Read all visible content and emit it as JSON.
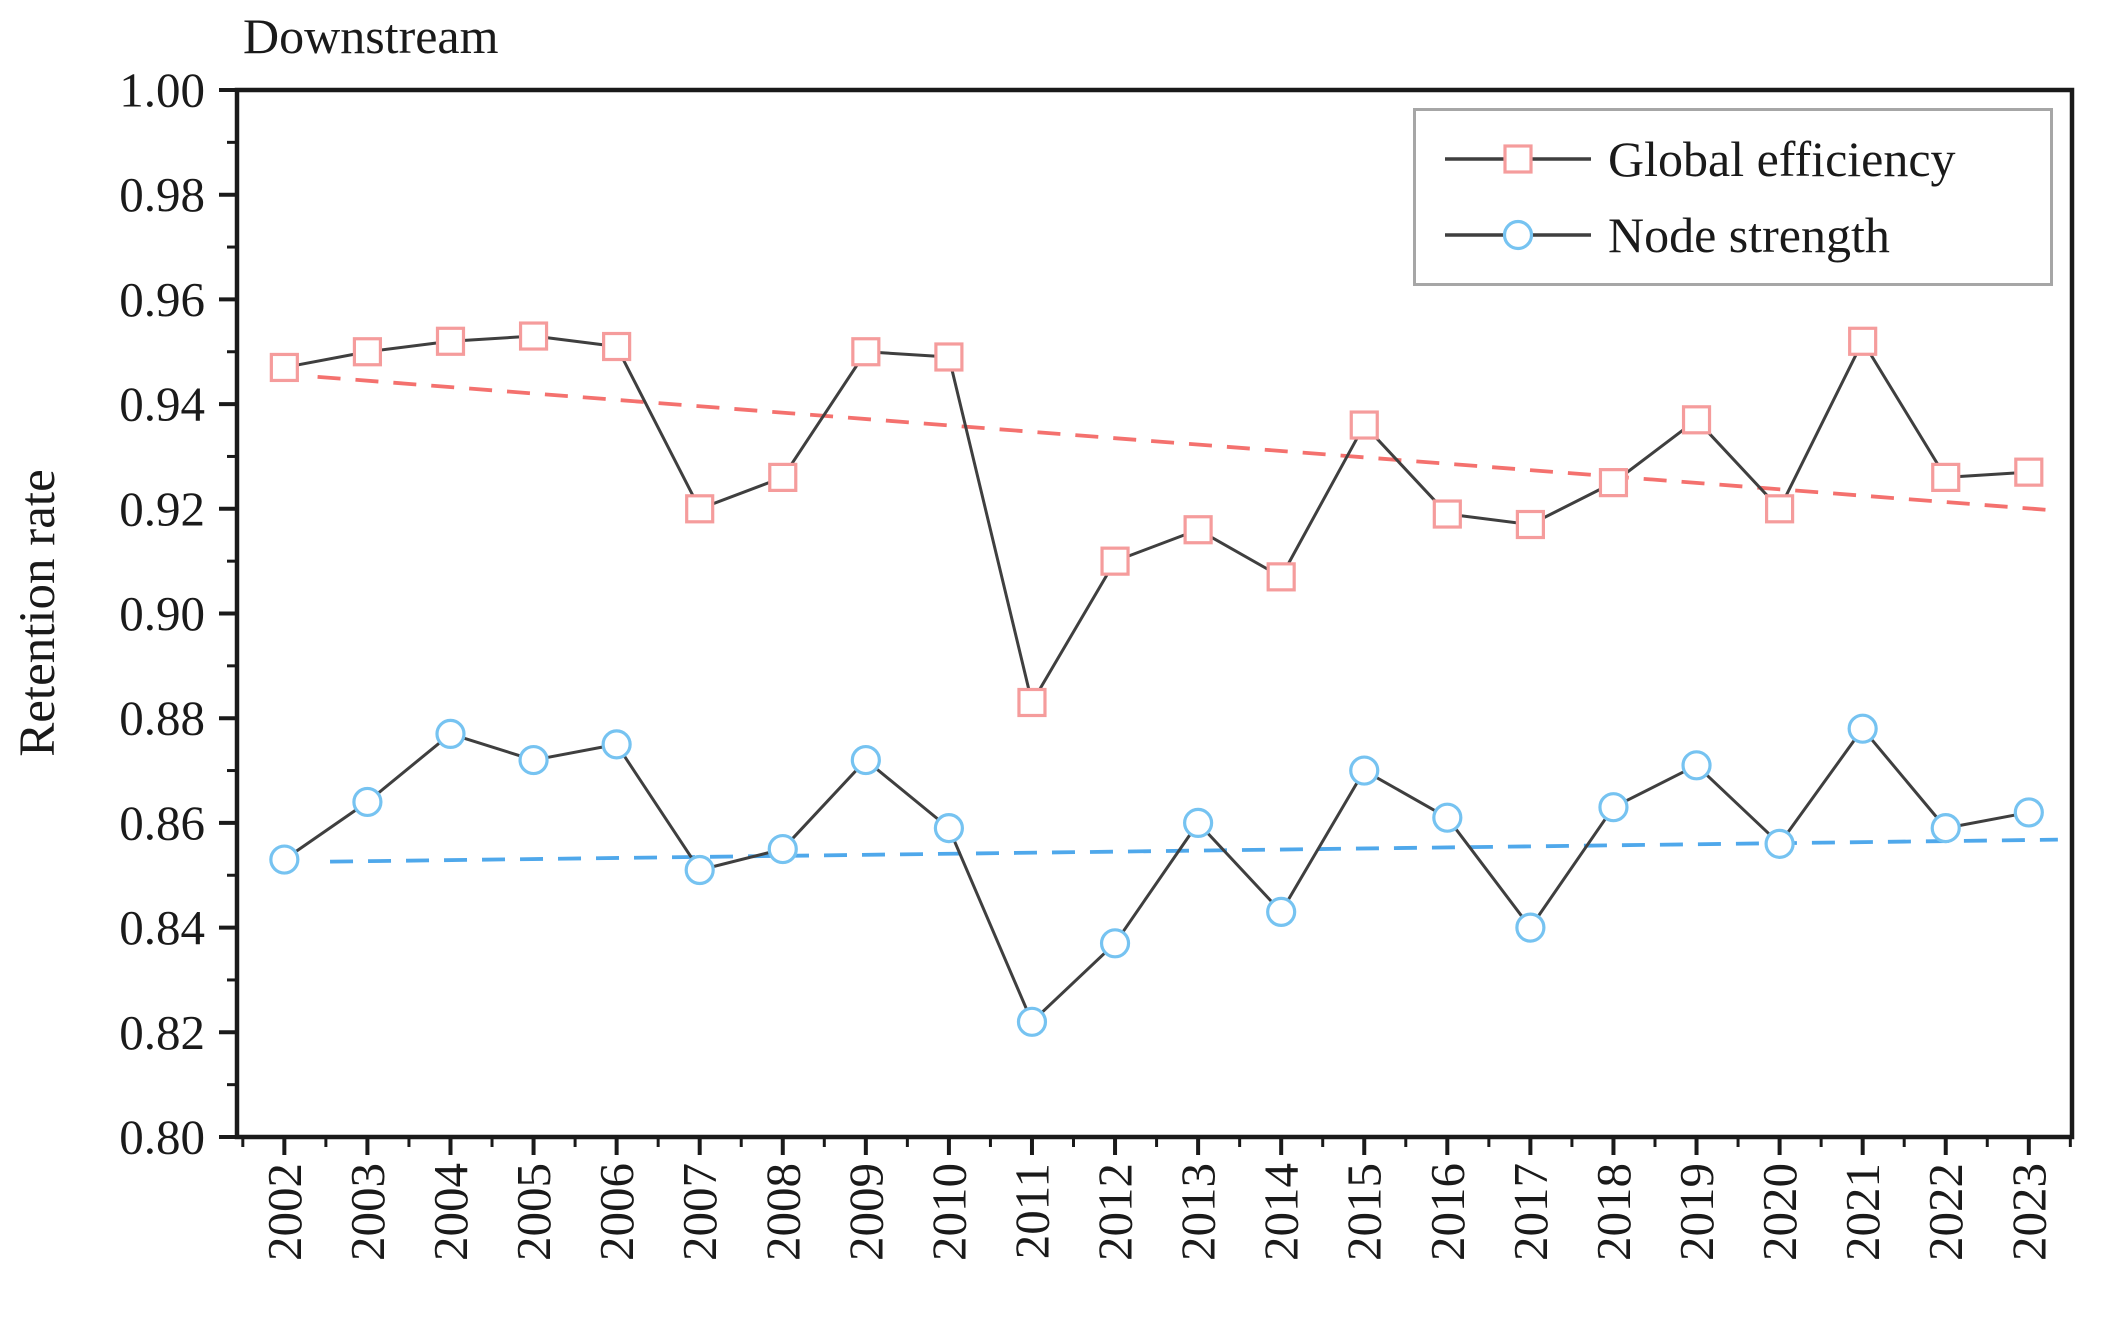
{
  "chart_data": {
    "type": "line",
    "title": "Downstream",
    "xlabel": "",
    "ylabel": "Retention rate",
    "x": [
      2002,
      2003,
      2004,
      2005,
      2006,
      2007,
      2008,
      2009,
      2010,
      2011,
      2012,
      2013,
      2014,
      2015,
      2016,
      2017,
      2018,
      2019,
      2020,
      2021,
      2022,
      2023
    ],
    "series": [
      {
        "name": "Global efficiency",
        "marker": "square",
        "color": "#f59c9c",
        "line_color": "#3f3f3f",
        "values": [
          0.947,
          0.95,
          0.952,
          0.953,
          0.951,
          0.92,
          0.926,
          0.95,
          0.949,
          0.883,
          0.91,
          0.916,
          0.907,
          0.936,
          0.919,
          0.917,
          0.925,
          0.937,
          0.92,
          0.952,
          0.926,
          0.927
        ],
        "trend": {
          "color": "#f4716e",
          "x1": 2002.4,
          "y1": 0.9452,
          "x2": 2023.3,
          "y2": 0.9197
        }
      },
      {
        "name": "Node strength",
        "marker": "circle",
        "color": "#76c3f1",
        "line_color": "#3f3f3f",
        "values": [
          0.853,
          0.864,
          0.877,
          0.872,
          0.875,
          0.851,
          0.855,
          0.872,
          0.859,
          0.822,
          0.837,
          0.86,
          0.843,
          0.87,
          0.861,
          0.84,
          0.863,
          0.871,
          0.856,
          0.878,
          0.859,
          0.862
        ],
        "trend": {
          "color": "#4fa8eb",
          "x1": 2002.55,
          "y1": 0.8526,
          "x2": 2023.35,
          "y2": 0.8568
        }
      }
    ],
    "x_range": [
      2001.43,
      2023.52
    ],
    "ylim": [
      0.8,
      1.0
    ],
    "y_tick_labels": [
      "0.80",
      "0.82",
      "0.84",
      "0.86",
      "0.88",
      "0.90",
      "0.92",
      "0.94",
      "0.96",
      "0.98",
      "1.00"
    ],
    "y_minor_step": 0.01,
    "x_minor_step": 0.5,
    "grid": false,
    "legend_position": "top-right",
    "axis_color": "#1a1a1a"
  }
}
